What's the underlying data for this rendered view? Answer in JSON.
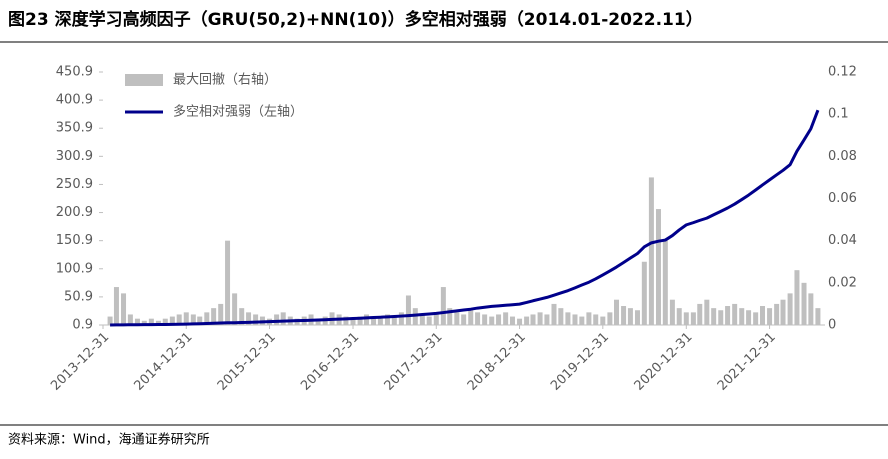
{
  "chart_data": {
    "type": "bar-line",
    "title": "图23 深度学习高频因子（GRU(50,2)+NN(10)）多空相对强弱（2014.01-2022.11）",
    "source": "资料来源：Wind，海通证券研究所",
    "x": [
      "2014-01-31",
      "2014-02-28",
      "2014-03-31",
      "2014-04-30",
      "2014-05-31",
      "2014-06-30",
      "2014-07-31",
      "2014-08-31",
      "2014-09-30",
      "2014-10-31",
      "2014-11-30",
      "2014-12-31",
      "2015-01-31",
      "2015-02-28",
      "2015-03-31",
      "2015-04-30",
      "2015-05-31",
      "2015-06-30",
      "2015-07-31",
      "2015-08-31",
      "2015-09-30",
      "2015-10-31",
      "2015-11-30",
      "2015-12-31",
      "2016-01-31",
      "2016-02-29",
      "2016-03-31",
      "2016-04-30",
      "2016-05-31",
      "2016-06-30",
      "2016-07-31",
      "2016-08-31",
      "2016-09-30",
      "2016-10-31",
      "2016-11-30",
      "2016-12-31",
      "2017-01-31",
      "2017-02-28",
      "2017-03-31",
      "2017-04-30",
      "2017-05-31",
      "2017-06-30",
      "2017-07-31",
      "2017-08-31",
      "2017-09-30",
      "2017-10-31",
      "2017-11-30",
      "2017-12-31",
      "2018-01-31",
      "2018-02-28",
      "2018-03-31",
      "2018-04-30",
      "2018-05-31",
      "2018-06-30",
      "2018-07-31",
      "2018-08-31",
      "2018-09-30",
      "2018-10-31",
      "2018-11-30",
      "2018-12-31",
      "2019-01-31",
      "2019-02-28",
      "2019-03-31",
      "2019-04-30",
      "2019-05-31",
      "2019-06-30",
      "2019-07-31",
      "2019-08-31",
      "2019-09-30",
      "2019-10-31",
      "2019-11-30",
      "2019-12-31",
      "2020-01-31",
      "2020-02-29",
      "2020-03-31",
      "2020-04-30",
      "2020-05-31",
      "2020-06-30",
      "2020-07-31",
      "2020-08-31",
      "2020-09-30",
      "2020-10-31",
      "2020-11-30",
      "2020-12-31",
      "2021-01-31",
      "2021-02-28",
      "2021-03-31",
      "2021-04-30",
      "2021-05-31",
      "2021-06-30",
      "2021-07-31",
      "2021-08-31",
      "2021-09-30",
      "2021-10-31",
      "2021-11-30",
      "2021-12-31",
      "2022-01-31",
      "2022-02-28",
      "2022-03-31",
      "2022-04-30",
      "2022-05-31",
      "2022-06-30",
      "2022-07-31"
    ],
    "series": [
      {
        "name": "最大回撤（右轴）",
        "type": "bar",
        "axis": "y2",
        "color": "#bfbfbf",
        "values": [
          0.004,
          0.018,
          0.015,
          0.005,
          0.003,
          0.002,
          0.003,
          0.002,
          0.003,
          0.004,
          0.005,
          0.006,
          0.005,
          0.004,
          0.006,
          0.008,
          0.01,
          0.04,
          0.015,
          0.008,
          0.006,
          0.005,
          0.004,
          0.003,
          0.005,
          0.006,
          0.004,
          0.003,
          0.004,
          0.005,
          0.003,
          0.004,
          0.006,
          0.005,
          0.004,
          0.003,
          0.004,
          0.005,
          0.003,
          0.004,
          0.005,
          0.004,
          0.006,
          0.014,
          0.008,
          0.005,
          0.004,
          0.006,
          0.018,
          0.008,
          0.006,
          0.005,
          0.007,
          0.006,
          0.005,
          0.004,
          0.005,
          0.006,
          0.004,
          0.003,
          0.004,
          0.005,
          0.006,
          0.005,
          0.01,
          0.008,
          0.006,
          0.005,
          0.004,
          0.006,
          0.005,
          0.004,
          0.006,
          0.012,
          0.009,
          0.008,
          0.007,
          0.03,
          0.07,
          0.055,
          0.04,
          0.012,
          0.008,
          0.006,
          0.006,
          0.01,
          0.012,
          0.008,
          0.007,
          0.009,
          0.01,
          0.008,
          0.007,
          0.006,
          0.009,
          0.008,
          0.01,
          0.012,
          0.015,
          0.026,
          0.02,
          0.015,
          0.008
        ]
      },
      {
        "name": "多空相对强弱（左轴）",
        "type": "line",
        "color": "#00008b",
        "values": [
          1.0,
          1.1,
          1.2,
          1.3,
          1.4,
          1.5,
          1.6,
          1.7,
          1.8,
          2.0,
          2.2,
          2.5,
          2.8,
          3.1,
          3.5,
          4.0,
          4.5,
          4.8,
          5.0,
          5.3,
          5.6,
          6.0,
          6.5,
          7.0,
          7.4,
          7.8,
          8.2,
          8.6,
          9.0,
          9.4,
          9.8,
          10.3,
          10.8,
          11.3,
          11.8,
          12.5,
          13,
          13.6,
          14.2,
          14.8,
          15.4,
          16,
          16.8,
          17.6,
          18.5,
          19.5,
          20.5,
          21.5,
          23,
          24.5,
          26,
          27.5,
          29,
          31,
          32.5,
          34,
          35,
          36,
          37,
          38,
          41,
          44,
          47,
          50,
          54,
          58,
          62,
          67,
          72,
          77,
          83,
          90,
          97,
          104,
          112,
          120,
          128,
          140,
          147,
          150,
          152,
          160,
          170,
          179,
          183,
          187,
          191,
          197,
          203,
          209,
          216,
          224,
          232,
          241,
          250,
          259,
          268,
          276,
          286,
          310,
          330,
          350,
          383
        ]
      }
    ],
    "xlim": [
      "2013-12-31",
      "2022-08-31"
    ],
    "xticks": [
      "2013-12-31",
      "2014-12-31",
      "2015-12-31",
      "2016-12-31",
      "2017-12-31",
      "2018-12-31",
      "2019-12-31",
      "2020-12-31",
      "2021-12-31"
    ],
    "ylim": [
      0.9,
      450.9
    ],
    "yticks": [
      0.9,
      50.9,
      100.9,
      150.9,
      200.9,
      250.9,
      300.9,
      350.9,
      400.9,
      450.9
    ],
    "y2lim": [
      0,
      0.12
    ],
    "y2ticks": [
      0,
      0.02,
      0.04,
      0.06,
      0.08,
      0.1,
      0.12
    ],
    "legend": "upper left"
  }
}
